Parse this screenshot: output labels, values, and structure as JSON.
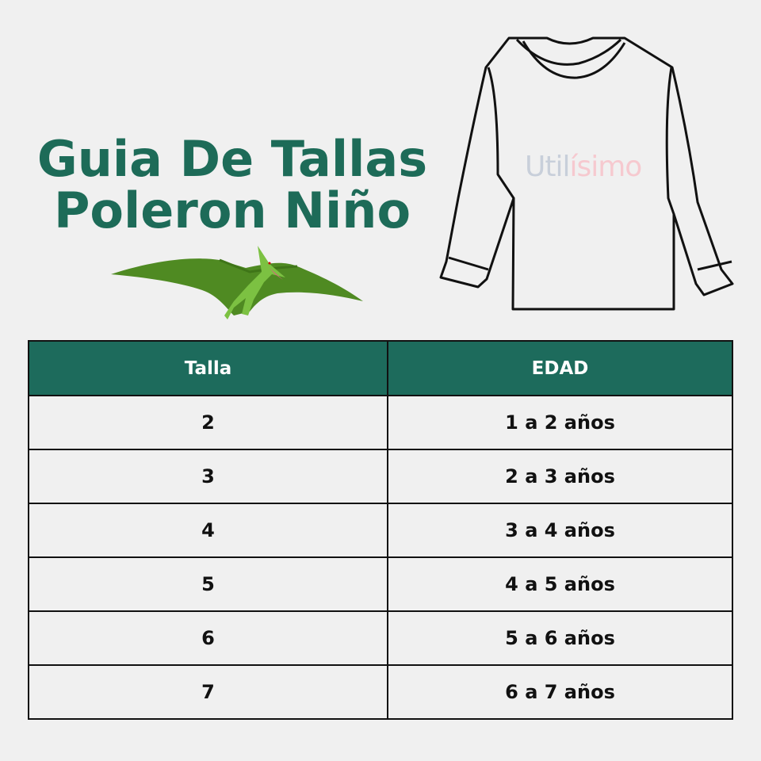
{
  "title": {
    "line1": "Guia De Tallas",
    "line2": "Poleron Niño"
  },
  "watermark": {
    "part1": "Util",
    "part2": "ísimo",
    "colors": {
      "part1": "#c8cfda",
      "part2": "#f6c9cf"
    }
  },
  "illustrations": {
    "pterodactyl": "pterodactyl-icon",
    "sweater": "sweater-icon"
  },
  "colors": {
    "accent": "#1d6b58",
    "header_bg": "#1d6b5c",
    "background": "#f0f0f0"
  },
  "table": {
    "headers": [
      "Talla",
      "EDAD"
    ],
    "rows": [
      [
        "2",
        "1 a 2 años"
      ],
      [
        "3",
        "2 a 3 años"
      ],
      [
        "4",
        "3 a 4 años"
      ],
      [
        "5",
        "4 a 5 años"
      ],
      [
        "6",
        "5 a 6 años"
      ],
      [
        "7",
        "6 a 7 años"
      ]
    ]
  }
}
